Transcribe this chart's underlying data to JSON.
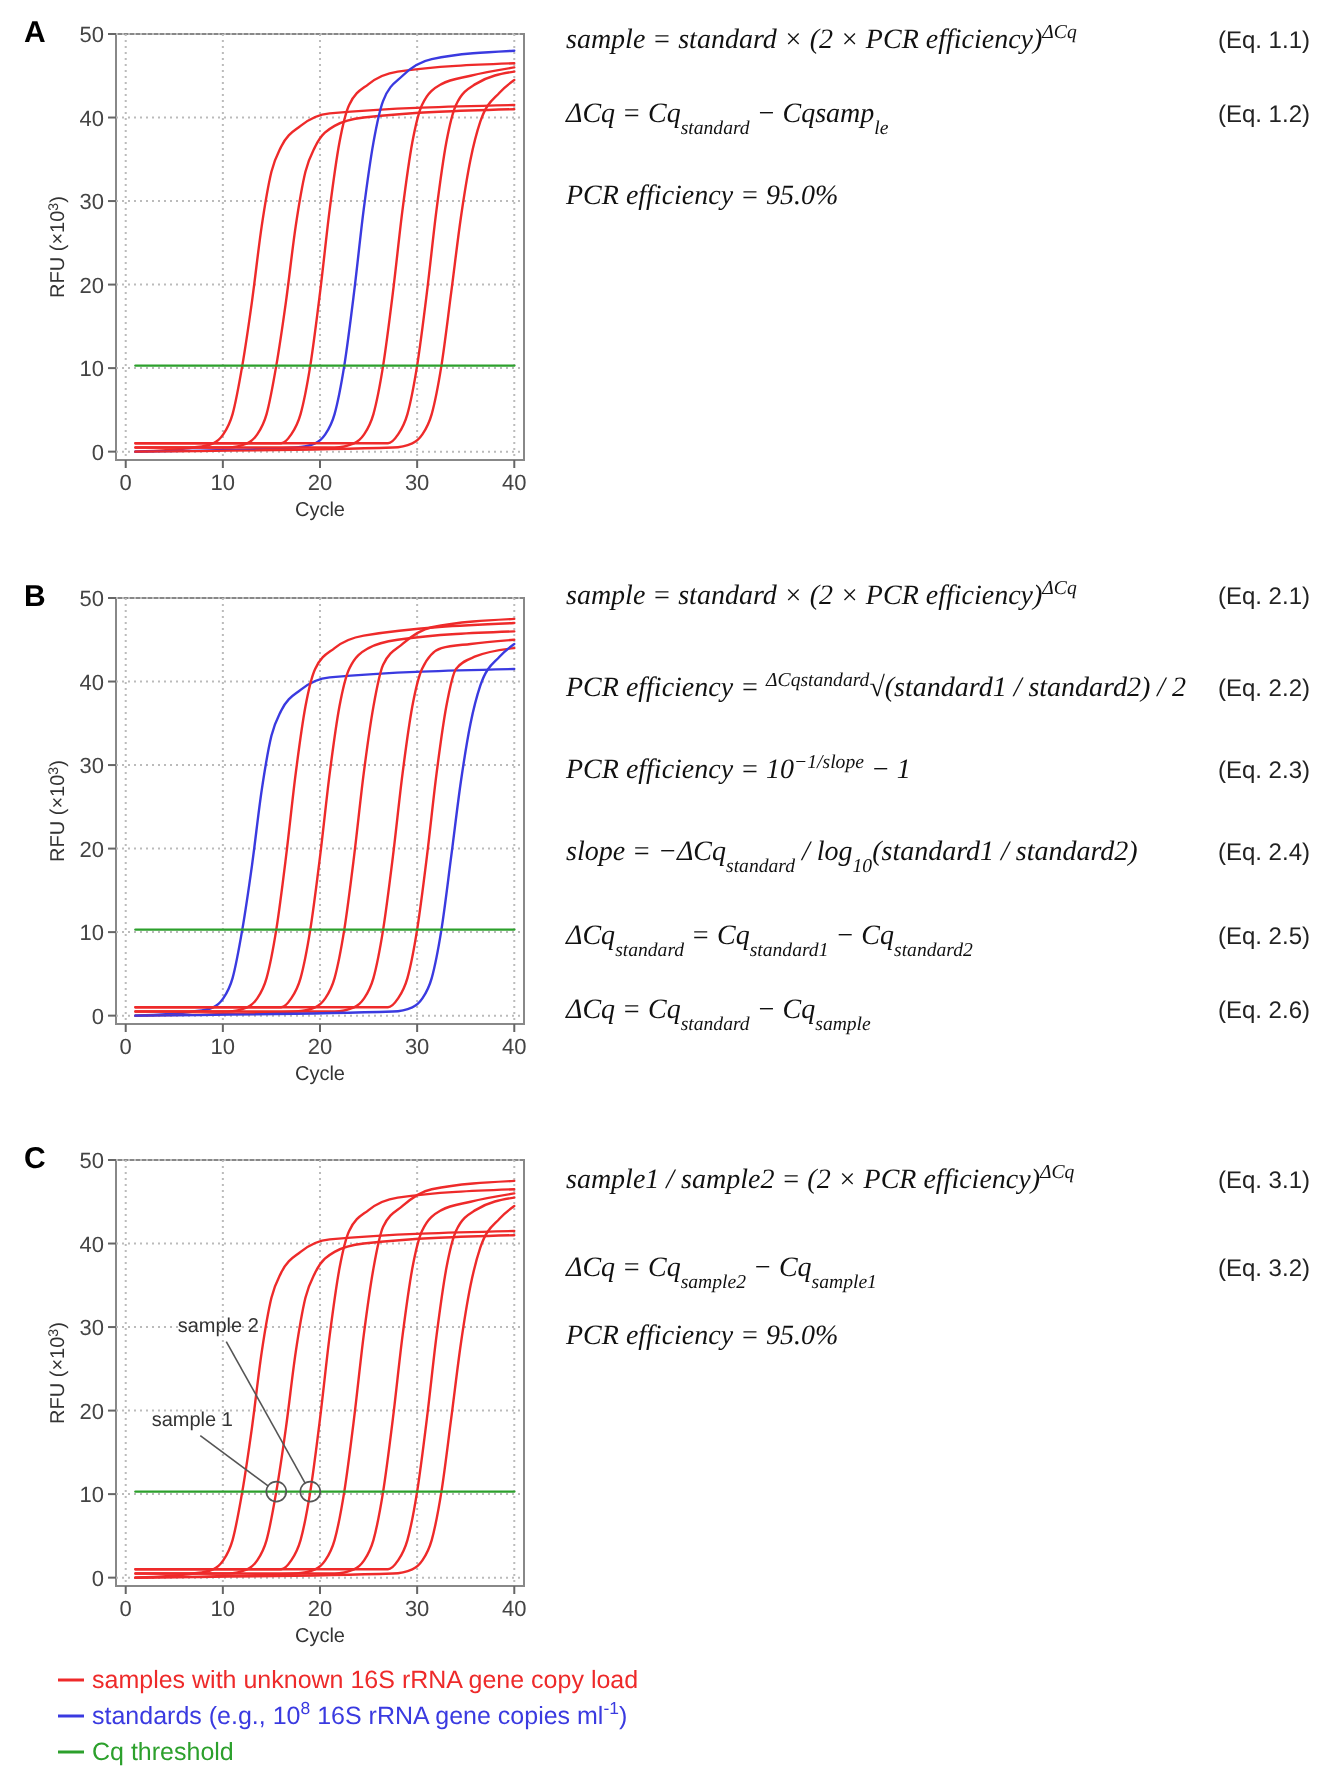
{
  "chart_data": [
    {
      "type": "line",
      "title": "A",
      "xlabel": "Cycle",
      "ylabel": "RFU (×10$^{3}$)",
      "xlim": [
        -1,
        41
      ],
      "ylim": [
        -1,
        50
      ],
      "xticks": [
        0,
        10,
        20,
        30,
        40
      ],
      "yticks": [
        0,
        10,
        20,
        30,
        40,
        50
      ],
      "grid": true,
      "series": [
        {
          "color": "#ee2a2a",
          "x": [
            1,
            7,
            9,
            10,
            11,
            12,
            13,
            14,
            15,
            16,
            18,
            21,
            40
          ],
          "values": [
            0,
            0.5,
            1,
            2,
            4.5,
            10.3,
            18,
            27,
            33.5,
            36.5,
            39,
            40.5,
            41.5
          ]
        },
        {
          "color": "#ee2a2a",
          "x": [
            1,
            10.5,
            12.5,
            13.5,
            14.5,
            15.5,
            16.5,
            17.5,
            18.5,
            19.5,
            21.5,
            24.5,
            40
          ],
          "values": [
            0.5,
            0.5,
            1,
            2,
            4.5,
            10.3,
            18,
            27,
            33.5,
            36.5,
            39,
            40,
            41
          ]
        },
        {
          "color": "#ee2a2a",
          "x": [
            1,
            14,
            16,
            17,
            18,
            19,
            20,
            21,
            22,
            23,
            25,
            28,
            40
          ],
          "values": [
            1,
            1,
            1,
            2,
            4.5,
            10.3,
            19,
            29,
            37,
            41.5,
            44,
            45.5,
            46.5
          ]
        },
        {
          "color": "#3a3ae0",
          "x": [
            1,
            17.5,
            19.5,
            20.5,
            21.5,
            22.5,
            23.5,
            24.5,
            25.5,
            26.5,
            28.5,
            31.5,
            40
          ],
          "values": [
            0,
            0.5,
            1,
            2,
            4.5,
            10.3,
            19,
            29,
            37,
            42,
            45,
            47,
            48
          ]
        },
        {
          "color": "#ee2a2a",
          "x": [
            1,
            21.5,
            23.5,
            24.5,
            25.5,
            26.5,
            27.5,
            28.5,
            29.5,
            30.5,
            32.5,
            35.5,
            40
          ],
          "values": [
            0.5,
            0.5,
            1,
            2,
            4.5,
            10.3,
            19,
            29,
            37,
            41.5,
            44,
            45,
            46
          ]
        },
        {
          "color": "#ee2a2a",
          "x": [
            1,
            25,
            27,
            28,
            29,
            30,
            31,
            32,
            33,
            34,
            36,
            40
          ],
          "values": [
            1,
            1,
            1,
            2,
            4.5,
            10.3,
            19,
            29,
            37,
            41.5,
            44,
            45.5
          ]
        },
        {
          "color": "#ee2a2a",
          "x": [
            1,
            27.5,
            29.5,
            30.5,
            31.5,
            32.5,
            33.5,
            34.5,
            35.5,
            36.5,
            38.5,
            40
          ],
          "values": [
            0,
            0.5,
            1,
            2,
            4.5,
            10.3,
            19,
            28,
            35,
            39.5,
            43,
            44.5
          ]
        },
        {
          "color": "#2ca02c",
          "x": [
            1,
            40
          ],
          "values": [
            10.3,
            10.3
          ]
        }
      ],
      "annotations": [
        "sample = standard × (2 × PCR efficiency)$^{ΔCq}$\t(Eq. 1.1)",
        "ΔCq = Cq$_{standard}$ − Cqsamp$_{le}$\t(Eq. 1.2)",
        "PCR efficiency = 95.0%"
      ]
    },
    {
      "type": "line",
      "title": "B",
      "xlabel": "Cycle",
      "ylabel": "RFU (×10$^{3}$)",
      "xlim": [
        -1,
        41
      ],
      "ylim": [
        -1,
        50
      ],
      "xticks": [
        0,
        10,
        20,
        30,
        40
      ],
      "yticks": [
        0,
        10,
        20,
        30,
        40,
        50
      ],
      "grid": true,
      "series": [
        {
          "color": "#3a3ae0",
          "x": [
            1,
            7,
            9,
            10,
            11,
            12,
            13,
            14,
            15,
            16,
            18,
            21,
            40
          ],
          "values": [
            0,
            0.5,
            1,
            2,
            4.5,
            10.3,
            18,
            27,
            33.5,
            36.5,
            39,
            40.5,
            41.5
          ]
        },
        {
          "color": "#ee2a2a",
          "x": [
            1,
            10.5,
            12.5,
            13.5,
            14.5,
            15.5,
            16.5,
            17.5,
            18.5,
            19.5,
            21.5,
            24.5,
            40
          ],
          "values": [
            0.5,
            0.5,
            1,
            2,
            4.5,
            10.3,
            19,
            29,
            37,
            41.5,
            44,
            45.5,
            47
          ]
        },
        {
          "color": "#ee2a2a",
          "x": [
            1,
            14,
            16,
            17,
            18,
            19,
            20,
            21,
            22,
            23,
            25,
            28,
            40
          ],
          "values": [
            1,
            1,
            1,
            2,
            4.5,
            10.3,
            19,
            29,
            37,
            41.5,
            44,
            45,
            46
          ]
        },
        {
          "color": "#ee2a2a",
          "x": [
            1,
            17.5,
            19.5,
            20.5,
            21.5,
            22.5,
            23.5,
            24.5,
            25.5,
            26.5,
            28.5,
            31.5,
            40
          ],
          "values": [
            0,
            0.5,
            1,
            2,
            4.5,
            10.3,
            19,
            29,
            37,
            42,
            44.5,
            46.5,
            47.5
          ]
        },
        {
          "color": "#ee2a2a",
          "x": [
            1,
            21.5,
            23.5,
            24.5,
            25.5,
            26.5,
            27.5,
            28.5,
            29.5,
            30.5,
            32.5,
            35.5,
            40
          ],
          "values": [
            0.5,
            0.5,
            1,
            2,
            4.5,
            10.3,
            19,
            29,
            37,
            41.5,
            44,
            44.5,
            45
          ]
        },
        {
          "color": "#ee2a2a",
          "x": [
            1,
            25,
            27,
            28,
            29,
            30,
            31,
            32,
            33,
            34,
            36,
            40
          ],
          "values": [
            1,
            1,
            1,
            2,
            4.5,
            10.3,
            19,
            29,
            37,
            41.5,
            43,
            44
          ]
        },
        {
          "color": "#3a3ae0",
          "x": [
            1,
            27.5,
            29.5,
            30.5,
            31.5,
            32.5,
            33.5,
            34.5,
            35.5,
            36.5,
            38.5,
            40
          ],
          "values": [
            0,
            0.5,
            1,
            2,
            4.5,
            10.3,
            19,
            28,
            35,
            39.5,
            43,
            44.5
          ]
        },
        {
          "color": "#2ca02c",
          "x": [
            1,
            40
          ],
          "values": [
            10.3,
            10.3
          ]
        }
      ],
      "annotations": [
        "sample = standard × (2 × PCR efficiency)$^{ΔCq}$\t(Eq. 2.1)",
        "PCR efficiency = $^{ΔCqstandard}$√(standard1 / standard2) / 2\t(Eq. 2.2)",
        "PCR efficiency = 10$^{−1/slope}$ − 1\t(Eq. 2.3)",
        "slope = −ΔCq$_{standard}$ / log$_{10}$(standard1 / standard2)\t(Eq. 2.4)",
        "ΔCq$_{standard}$ = Cq$_{standard1}$ − Cq$_{standard2}$\t(Eq. 2.5)",
        "ΔCq = Cq$_{standard}$ − Cq$_{sample}$\t(Eq. 2.6)"
      ]
    },
    {
      "type": "line",
      "title": "C",
      "xlabel": "Cycle",
      "ylabel": "RFU (×10$^{3}$)",
      "xlim": [
        -1,
        41
      ],
      "ylim": [
        -1,
        50
      ],
      "xticks": [
        0,
        10,
        20,
        30,
        40
      ],
      "yticks": [
        0,
        10,
        20,
        30,
        40,
        50
      ],
      "grid": true,
      "series": [
        {
          "color": "#ee2a2a",
          "x": [
            1,
            7,
            9,
            10,
            11,
            12,
            13,
            14,
            15,
            16,
            18,
            21,
            40
          ],
          "values": [
            0,
            0.5,
            1,
            2,
            4.5,
            10.3,
            18,
            27,
            33.5,
            36.5,
            39,
            40.5,
            41.5
          ]
        },
        {
          "color": "#ee2a2a",
          "x": [
            1,
            10.5,
            12.5,
            13.5,
            14.5,
            15.5,
            16.5,
            17.5,
            18.5,
            19.5,
            21.5,
            24.5,
            40
          ],
          "values": [
            0.5,
            0.5,
            1,
            2,
            4.5,
            10.3,
            18,
            27,
            33.5,
            36.5,
            39,
            40,
            41
          ]
        },
        {
          "color": "#ee2a2a",
          "x": [
            1,
            14,
            16,
            17,
            18,
            19,
            20,
            21,
            22,
            23,
            25,
            28,
            40
          ],
          "values": [
            1,
            1,
            1,
            2,
            4.5,
            10.3,
            19,
            29,
            37,
            41.5,
            44,
            45.5,
            46.5
          ]
        },
        {
          "color": "#ee2a2a",
          "x": [
            1,
            17.5,
            19.5,
            20.5,
            21.5,
            22.5,
            23.5,
            24.5,
            25.5,
            26.5,
            28.5,
            31.5,
            40
          ],
          "values": [
            0,
            0.5,
            1,
            2,
            4.5,
            10.3,
            19,
            29,
            37,
            42,
            44.5,
            46.5,
            47.5
          ]
        },
        {
          "color": "#ee2a2a",
          "x": [
            1,
            21.5,
            23.5,
            24.5,
            25.5,
            26.5,
            27.5,
            28.5,
            29.5,
            30.5,
            32.5,
            35.5,
            40
          ],
          "values": [
            0.5,
            0.5,
            1,
            2,
            4.5,
            10.3,
            19,
            29,
            37,
            41.5,
            44,
            45,
            46
          ]
        },
        {
          "color": "#ee2a2a",
          "x": [
            1,
            25,
            27,
            28,
            29,
            30,
            31,
            32,
            33,
            34,
            36,
            40
          ],
          "values": [
            1,
            1,
            1,
            2,
            4.5,
            10.3,
            19,
            29,
            37,
            41.5,
            44,
            45.5
          ]
        },
        {
          "color": "#ee2a2a",
          "x": [
            1,
            27.5,
            29.5,
            30.5,
            31.5,
            32.5,
            33.5,
            34.5,
            35.5,
            36.5,
            38.5,
            40
          ],
          "values": [
            0,
            0.5,
            1,
            2,
            4.5,
            10.3,
            19,
            28,
            35,
            39.5,
            43,
            44.5
          ]
        },
        {
          "color": "#2ca02c",
          "x": [
            1,
            40
          ],
          "values": [
            10.3,
            10.3
          ]
        }
      ],
      "annotations": [
        "sample1 / sample2 = (2 × PCR efficiency)$^{ΔCq}$\t(Eq. 3.1)",
        "ΔCq = Cq$_{sample2}$ − Cq$_{sample1}$\t(Eq. 3.2)",
        "PCR efficiency = 95.0%",
        {
          "text": "sample 1",
          "x": 15.5,
          "y": 10.3
        },
        {
          "text": "sample 2",
          "x": 19,
          "y": 10.3
        }
      ]
    },
    {
      "type": "other",
      "annotations": [
        "samples with unknown 16S rRNA gene copy load",
        "standards (e.g., 10$^{8}$ 16S rRNA gene copies ml$^{-1}$)",
        "Cq threshold"
      ],
      "colors": [
        "#ee2a2a",
        "#3a3ae0",
        "#2ca02c"
      ]
    }
  ]
}
